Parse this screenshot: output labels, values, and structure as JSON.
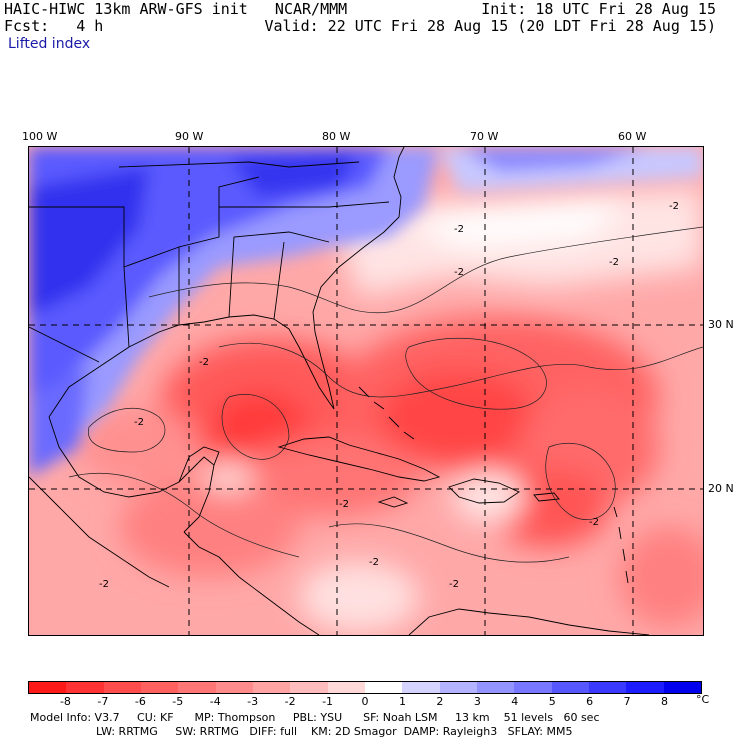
{
  "header": {
    "model_line": "HAIC-HIWC 13km ARW-GFS init   NCAR/MMM",
    "fcst_line": "Fcst:   4 h",
    "init_line": "Init: 18 UTC Fri 28 Aug 15",
    "valid_line": "Valid: 22 UTC Fri 28 Aug 15 (20 LDT Fri 28 Aug 15)"
  },
  "field_name": "Lifted index",
  "map": {
    "longitude_labels": [
      "100 W",
      "90 W",
      "80 W",
      "70 W",
      "60 W"
    ],
    "latitude_labels": [
      "30 N",
      "20 N"
    ],
    "contour_label": "-2"
  },
  "colorbar": {
    "unit": "°C",
    "labels": [
      "-8",
      "-7",
      "-6",
      "-5",
      "-4",
      "-3",
      "-2",
      "-1",
      "0",
      "1",
      "2",
      "3",
      "4",
      "5",
      "6",
      "7",
      "8"
    ],
    "colors": [
      "#ff1a1a",
      "#ff3333",
      "#ff4d4d",
      "#ff6060",
      "#ff7676",
      "#ff8c8c",
      "#ffa3a3",
      "#ffbcbc",
      "#ffd8d8",
      "#ffffff",
      "#d4d4ff",
      "#b3b3ff",
      "#9494ff",
      "#7777ff",
      "#5757ff",
      "#3a3aff",
      "#1c1cff",
      "#0000ee"
    ]
  },
  "model_info": {
    "line1": "Model Info: V3.7     CU: KF      MP: Thompson     PBL: YSU      SF: Noah LSM     13 km    51 levels   60 sec",
    "line2": "LW: RRTMG     SW: RRTMG   DIFF: full    KM: 2D Smagor  DAMP: Rayleigh3   SFLAY: MM5"
  }
}
